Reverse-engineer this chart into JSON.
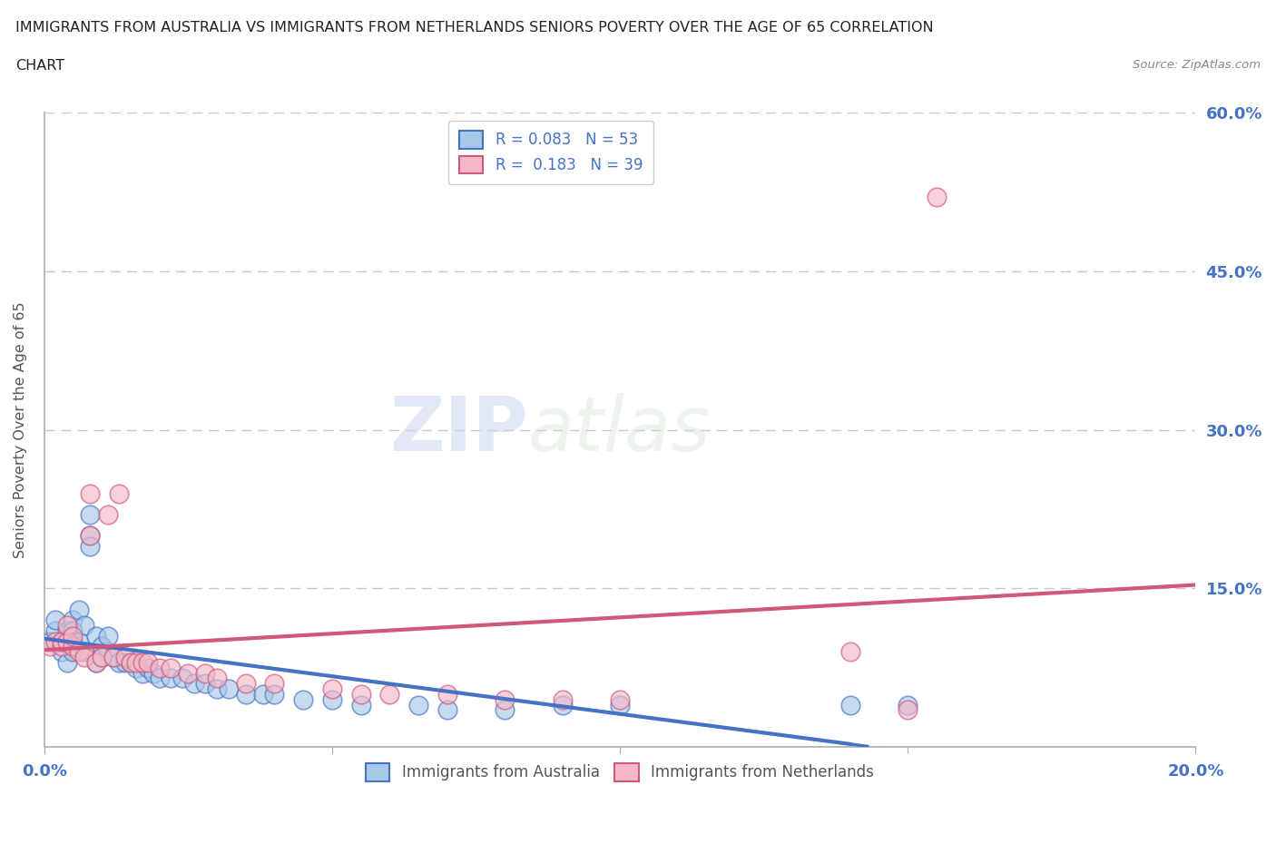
{
  "title_line1": "IMMIGRANTS FROM AUSTRALIA VS IMMIGRANTS FROM NETHERLANDS SENIORS POVERTY OVER THE AGE OF 65 CORRELATION",
  "title_line2": "CHART",
  "source": "Source: ZipAtlas.com",
  "ylabel": "Seniors Poverty Over the Age of 65",
  "xlim": [
    0.0,
    0.2
  ],
  "ylim": [
    0.0,
    0.6
  ],
  "color_australia": "#a8c8e8",
  "color_netherlands": "#f4b8c8",
  "trendline_australia": "#4472c4",
  "trendline_netherlands": "#d05878",
  "watermark_zip": "ZIP",
  "watermark_atlas": "atlas",
  "axis_color": "#4472c4",
  "background_color": "#ffffff",
  "grid_color": "#c8c8c8",
  "australia_x": [
    0.001,
    0.002,
    0.002,
    0.003,
    0.003,
    0.004,
    0.004,
    0.004,
    0.005,
    0.005,
    0.005,
    0.005,
    0.006,
    0.006,
    0.007,
    0.007,
    0.008,
    0.008,
    0.008,
    0.009,
    0.009,
    0.01,
    0.01,
    0.011,
    0.011,
    0.012,
    0.013,
    0.014,
    0.015,
    0.016,
    0.017,
    0.018,
    0.019,
    0.02,
    0.022,
    0.024,
    0.026,
    0.028,
    0.03,
    0.032,
    0.035,
    0.038,
    0.04,
    0.045,
    0.05,
    0.055,
    0.065,
    0.07,
    0.08,
    0.09,
    0.1,
    0.14,
    0.15
  ],
  "australia_y": [
    0.1,
    0.11,
    0.12,
    0.1,
    0.09,
    0.11,
    0.1,
    0.08,
    0.12,
    0.11,
    0.1,
    0.09,
    0.13,
    0.1,
    0.115,
    0.09,
    0.2,
    0.22,
    0.19,
    0.105,
    0.08,
    0.095,
    0.085,
    0.09,
    0.105,
    0.085,
    0.08,
    0.08,
    0.08,
    0.075,
    0.07,
    0.075,
    0.07,
    0.065,
    0.065,
    0.065,
    0.06,
    0.06,
    0.055,
    0.055,
    0.05,
    0.05,
    0.05,
    0.045,
    0.045,
    0.04,
    0.04,
    0.035,
    0.035,
    0.04,
    0.04,
    0.04,
    0.04
  ],
  "netherlands_x": [
    0.001,
    0.002,
    0.003,
    0.003,
    0.004,
    0.004,
    0.005,
    0.005,
    0.006,
    0.007,
    0.008,
    0.008,
    0.009,
    0.01,
    0.011,
    0.012,
    0.013,
    0.014,
    0.015,
    0.016,
    0.017,
    0.018,
    0.02,
    0.022,
    0.025,
    0.028,
    0.03,
    0.035,
    0.04,
    0.05,
    0.055,
    0.06,
    0.07,
    0.08,
    0.09,
    0.1,
    0.14,
    0.15,
    0.155
  ],
  "netherlands_y": [
    0.095,
    0.1,
    0.095,
    0.1,
    0.1,
    0.115,
    0.095,
    0.105,
    0.09,
    0.085,
    0.2,
    0.24,
    0.08,
    0.085,
    0.22,
    0.085,
    0.24,
    0.085,
    0.08,
    0.08,
    0.08,
    0.08,
    0.075,
    0.075,
    0.07,
    0.07,
    0.065,
    0.06,
    0.06,
    0.055,
    0.05,
    0.05,
    0.05,
    0.045,
    0.045,
    0.045,
    0.09,
    0.035,
    0.52
  ],
  "trendline_solid_end_australia": 0.14,
  "note_r1": "R = 0.083   N = 53",
  "note_r2": "R =  0.183   N = 39"
}
